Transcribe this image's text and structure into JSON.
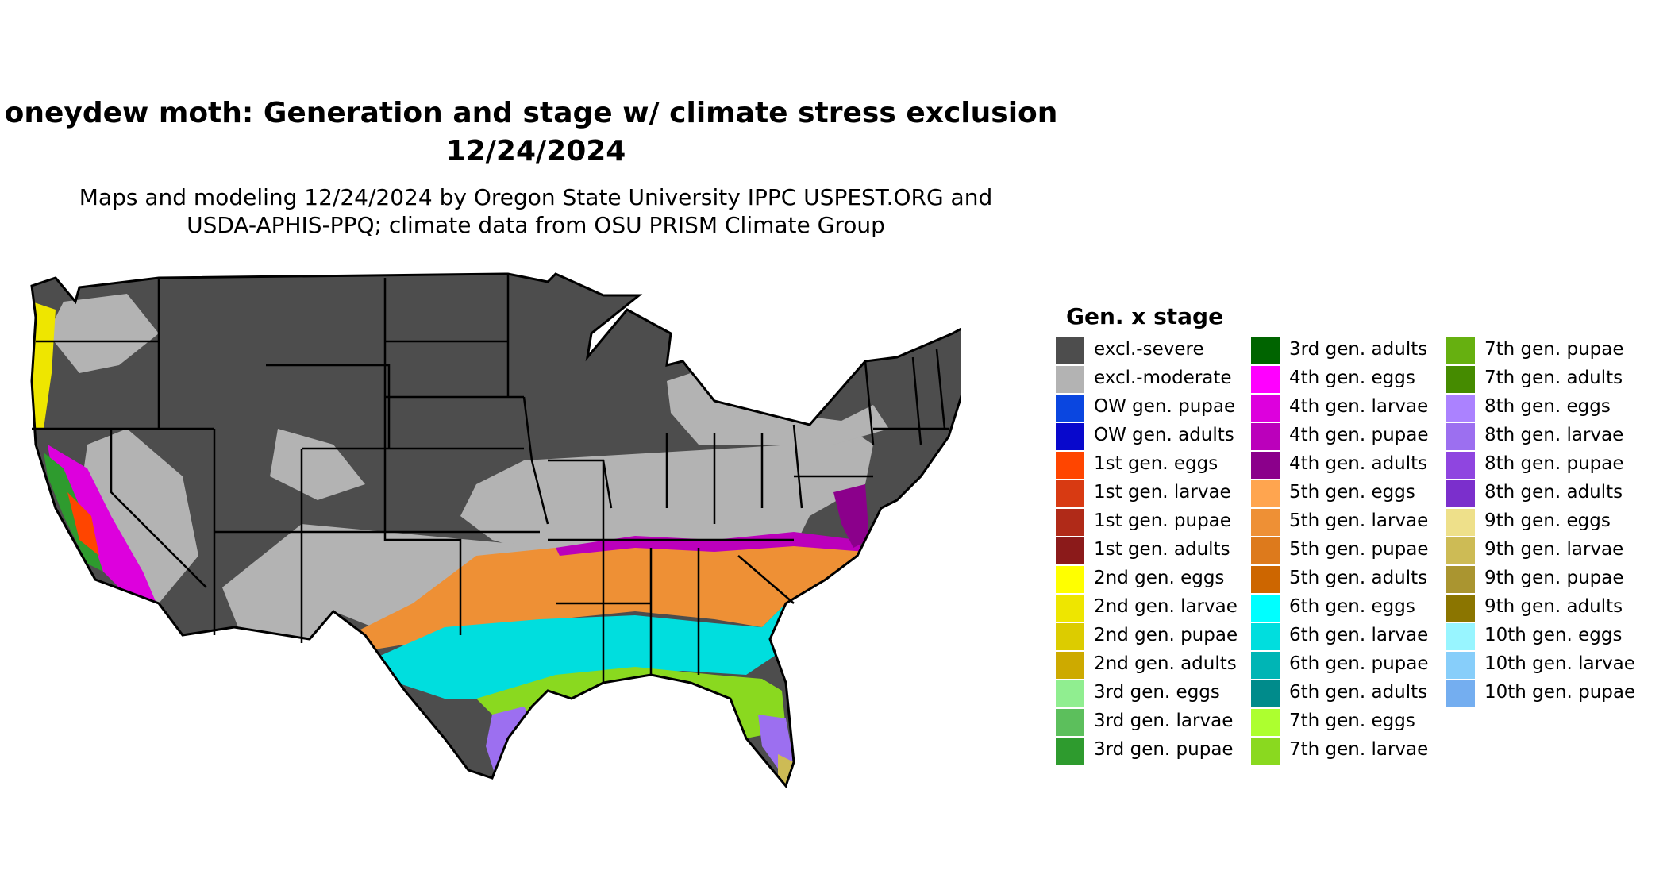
{
  "header": {
    "title_line1": "oneydew moth: Generation and stage w/ climate stress exclusion",
    "title_line2": "12/24/2024",
    "subtitle_line1": "Maps and modeling 12/24/2024 by Oregon State University IPPC USPEST.ORG and",
    "subtitle_line2": "USDA-APHIS-PPQ; climate data from OSU PRISM Climate Group"
  },
  "legend": {
    "title": "Gen. x stage",
    "columns": [
      [
        {
          "label": "excl.-severe",
          "color": "#4d4d4d"
        },
        {
          "label": "excl.-moderate",
          "color": "#b3b3b3"
        },
        {
          "label": "OW gen. pupae",
          "color": "#0a46e0"
        },
        {
          "label": "OW gen. adults",
          "color": "#0808cc"
        },
        {
          "label": "1st gen. eggs",
          "color": "#ff4500"
        },
        {
          "label": "1st gen. larvae",
          "color": "#d83a12"
        },
        {
          "label": "1st gen. pupae",
          "color": "#b02a18"
        },
        {
          "label": "1st gen. adults",
          "color": "#8b1a1a"
        },
        {
          "label": "2nd gen. eggs",
          "color": "#ffff00"
        },
        {
          "label": "2nd gen. larvae",
          "color": "#eee600"
        },
        {
          "label": "2nd gen. pupae",
          "color": "#dccc00"
        },
        {
          "label": "2nd gen. adults",
          "color": "#cdaa00"
        },
        {
          "label": "3rd gen. eggs",
          "color": "#90ee90"
        },
        {
          "label": "3rd gen. larvae",
          "color": "#5cbf5c"
        },
        {
          "label": "3rd gen. pupae",
          "color": "#2e9b2e"
        }
      ],
      [
        {
          "label": "3rd gen. adults",
          "color": "#006400"
        },
        {
          "label": "4th gen. eggs",
          "color": "#ff00ff"
        },
        {
          "label": "4th gen. larvae",
          "color": "#dd00dd"
        },
        {
          "label": "4th gen. pupae",
          "color": "#bb00bb"
        },
        {
          "label": "4th gen. adults",
          "color": "#8b008b"
        },
        {
          "label": "5th gen. eggs",
          "color": "#ffa54f"
        },
        {
          "label": "5th gen. larvae",
          "color": "#ee9035"
        },
        {
          "label": "5th gen. pupae",
          "color": "#dd7a1c"
        },
        {
          "label": "5th gen. adults",
          "color": "#cd6600"
        },
        {
          "label": "6th gen. eggs",
          "color": "#00ffff"
        },
        {
          "label": "6th gen. larvae",
          "color": "#00dede"
        },
        {
          "label": "6th gen. pupae",
          "color": "#00b5b5"
        },
        {
          "label": "6th gen. adults",
          "color": "#008b8b"
        },
        {
          "label": "7th gen. eggs",
          "color": "#adff2f"
        },
        {
          "label": "7th gen. larvae",
          "color": "#8ad91f"
        }
      ],
      [
        {
          "label": "7th gen. pupae",
          "color": "#66b010"
        },
        {
          "label": "7th gen. adults",
          "color": "#458b00"
        },
        {
          "label": "8th gen. eggs",
          "color": "#ab82ff"
        },
        {
          "label": "8th gen. larvae",
          "color": "#9c6ff0"
        },
        {
          "label": "8th gen. pupae",
          "color": "#8f45e0"
        },
        {
          "label": "8th gen. adults",
          "color": "#7b2fcc"
        },
        {
          "label": "9th gen. eggs",
          "color": "#eee08a"
        },
        {
          "label": "9th gen. larvae",
          "color": "#cdbb55"
        },
        {
          "label": "9th gen. pupae",
          "color": "#aa9530"
        },
        {
          "label": "9th gen. adults",
          "color": "#8b7500"
        },
        {
          "label": "10th gen. eggs",
          "color": "#98f5ff"
        },
        {
          "label": "10th gen. larvae",
          "color": "#87cefa"
        },
        {
          "label": "10th gen. pupae",
          "color": "#74aef0"
        }
      ]
    ]
  }
}
